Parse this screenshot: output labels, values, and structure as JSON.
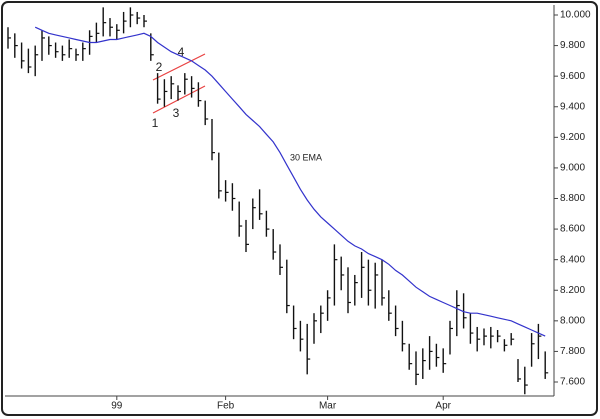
{
  "chart_data": {
    "type": "ohlc",
    "categories": [
      null,
      null,
      null,
      null,
      null,
      null,
      null,
      null,
      null,
      null,
      null,
      null,
      null,
      null,
      null,
      null,
      "99",
      null,
      null,
      null,
      null,
      null,
      null,
      null,
      null,
      null,
      null,
      null,
      null,
      null,
      null,
      null,
      "Feb",
      null,
      null,
      null,
      null,
      null,
      null,
      null,
      null,
      null,
      null,
      null,
      null,
      null,
      null,
      "Mar",
      null,
      null,
      null,
      null,
      null,
      null,
      null,
      null,
      null,
      null,
      null,
      null,
      null,
      null,
      null,
      null,
      "Apr",
      null,
      null,
      null,
      null,
      null,
      null,
      null,
      null,
      null,
      null,
      null,
      null,
      null,
      null,
      null
    ],
    "high": [
      9.92,
      9.88,
      9.82,
      9.78,
      9.8,
      9.9,
      9.86,
      9.82,
      9.8,
      9.84,
      9.78,
      9.82,
      9.9,
      9.95,
      10.05,
      9.98,
      9.94,
      10.02,
      10.05,
      10.02,
      10.0,
      9.88,
      9.62,
      9.58,
      9.6,
      9.54,
      9.62,
      9.6,
      9.56,
      9.44,
      9.32,
      9.1,
      8.92,
      8.9,
      8.78,
      8.66,
      8.8,
      8.86,
      8.72,
      8.6,
      8.5,
      8.4,
      8.1,
      8.0,
      7.98,
      8.05,
      8.1,
      8.2,
      8.5,
      8.42,
      8.35,
      8.3,
      8.45,
      8.4,
      8.38,
      8.4,
      8.2,
      8.1,
      8.0,
      7.85,
      7.8,
      7.82,
      7.9,
      7.85,
      7.82,
      8.0,
      8.2,
      8.18,
      8.05,
      7.96,
      7.95,
      7.96,
      7.94,
      7.88,
      7.92,
      7.75,
      7.7,
      7.92,
      7.98,
      7.8
    ],
    "low": [
      9.78,
      9.72,
      9.65,
      9.62,
      9.6,
      9.7,
      9.74,
      9.72,
      9.7,
      9.72,
      9.7,
      9.7,
      9.74,
      9.82,
      9.86,
      9.86,
      9.84,
      9.88,
      9.92,
      9.94,
      9.92,
      9.7,
      9.42,
      9.4,
      9.45,
      9.44,
      9.48,
      9.46,
      9.4,
      9.28,
      9.05,
      8.8,
      8.78,
      8.72,
      8.55,
      8.45,
      8.6,
      8.66,
      8.55,
      8.4,
      8.3,
      8.05,
      7.88,
      7.8,
      7.65,
      7.85,
      7.92,
      8.0,
      8.1,
      8.2,
      8.05,
      8.1,
      8.15,
      8.1,
      8.08,
      8.1,
      8.0,
      7.9,
      7.8,
      7.68,
      7.58,
      7.62,
      7.68,
      7.7,
      7.66,
      7.78,
      7.9,
      7.95,
      7.85,
      7.8,
      7.84,
      7.82,
      7.86,
      7.8,
      7.84,
      7.6,
      7.52,
      7.7,
      7.75,
      7.62
    ],
    "close": [
      9.85,
      9.8,
      9.7,
      9.66,
      9.74,
      9.85,
      9.8,
      9.76,
      9.74,
      9.78,
      9.74,
      9.78,
      9.86,
      9.88,
      9.95,
      9.92,
      9.9,
      9.96,
      10.0,
      9.98,
      9.96,
      9.74,
      9.45,
      9.5,
      9.55,
      9.5,
      9.58,
      9.52,
      9.44,
      9.32,
      9.1,
      8.85,
      8.84,
      8.8,
      8.62,
      8.5,
      8.74,
      8.7,
      8.6,
      8.45,
      8.35,
      8.1,
      7.95,
      7.88,
      7.75,
      8.0,
      8.05,
      8.15,
      8.4,
      8.3,
      8.12,
      8.25,
      8.35,
      8.2,
      8.3,
      8.15,
      8.05,
      7.95,
      7.85,
      7.72,
      7.65,
      7.74,
      7.8,
      7.76,
      7.72,
      7.95,
      8.1,
      8.02,
      7.92,
      7.88,
      7.9,
      7.9,
      7.9,
      7.84,
      7.88,
      7.62,
      7.58,
      7.85,
      7.9,
      7.66
    ],
    "ema": {
      "label": "30 EMA",
      "color": "#3333cc",
      "values": [
        null,
        null,
        null,
        null,
        9.92,
        9.9,
        9.88,
        9.87,
        9.86,
        9.85,
        9.84,
        9.83,
        9.82,
        9.82,
        9.83,
        9.84,
        9.84,
        9.85,
        9.86,
        9.87,
        9.88,
        9.86,
        9.82,
        9.79,
        9.76,
        9.74,
        9.72,
        9.7,
        9.67,
        9.64,
        9.6,
        9.55,
        9.5,
        9.45,
        9.4,
        9.35,
        9.31,
        9.27,
        9.22,
        9.17,
        9.1,
        9.02,
        8.94,
        8.86,
        8.79,
        8.73,
        8.68,
        8.64,
        8.6,
        8.56,
        8.52,
        8.49,
        8.47,
        8.44,
        8.42,
        8.4,
        8.37,
        8.33,
        8.3,
        8.26,
        8.22,
        8.19,
        8.16,
        8.14,
        8.12,
        8.1,
        8.08,
        8.06,
        8.05,
        8.05,
        8.04,
        8.03,
        8.02,
        8.01,
        8.0,
        7.98,
        7.96,
        7.94,
        7.92,
        7.9
      ]
    },
    "bar_color": "#111111",
    "annotations": [
      "1",
      "2",
      "3",
      "4"
    ],
    "annotation_color": "#e84040",
    "ylim": [
      7.54,
      10.08
    ],
    "yticks": [
      {
        "value": 7.6,
        "label": "7.600"
      },
      {
        "value": 7.8,
        "label": "7.800"
      },
      {
        "value": 8.0,
        "label": "8.000"
      },
      {
        "value": 8.2,
        "label": "8.200"
      },
      {
        "value": 8.4,
        "label": "8.400"
      },
      {
        "value": 8.6,
        "label": "8.600"
      },
      {
        "value": 8.8,
        "label": "8.800"
      },
      {
        "value": 9.0,
        "label": "9.000"
      },
      {
        "value": 9.2,
        "label": "9.200"
      },
      {
        "value": 9.4,
        "label": "9.400"
      },
      {
        "value": 9.6,
        "label": "9.600"
      },
      {
        "value": 9.8,
        "label": "9.800"
      },
      {
        "value": 10.0,
        "label": "10.000"
      }
    ]
  }
}
